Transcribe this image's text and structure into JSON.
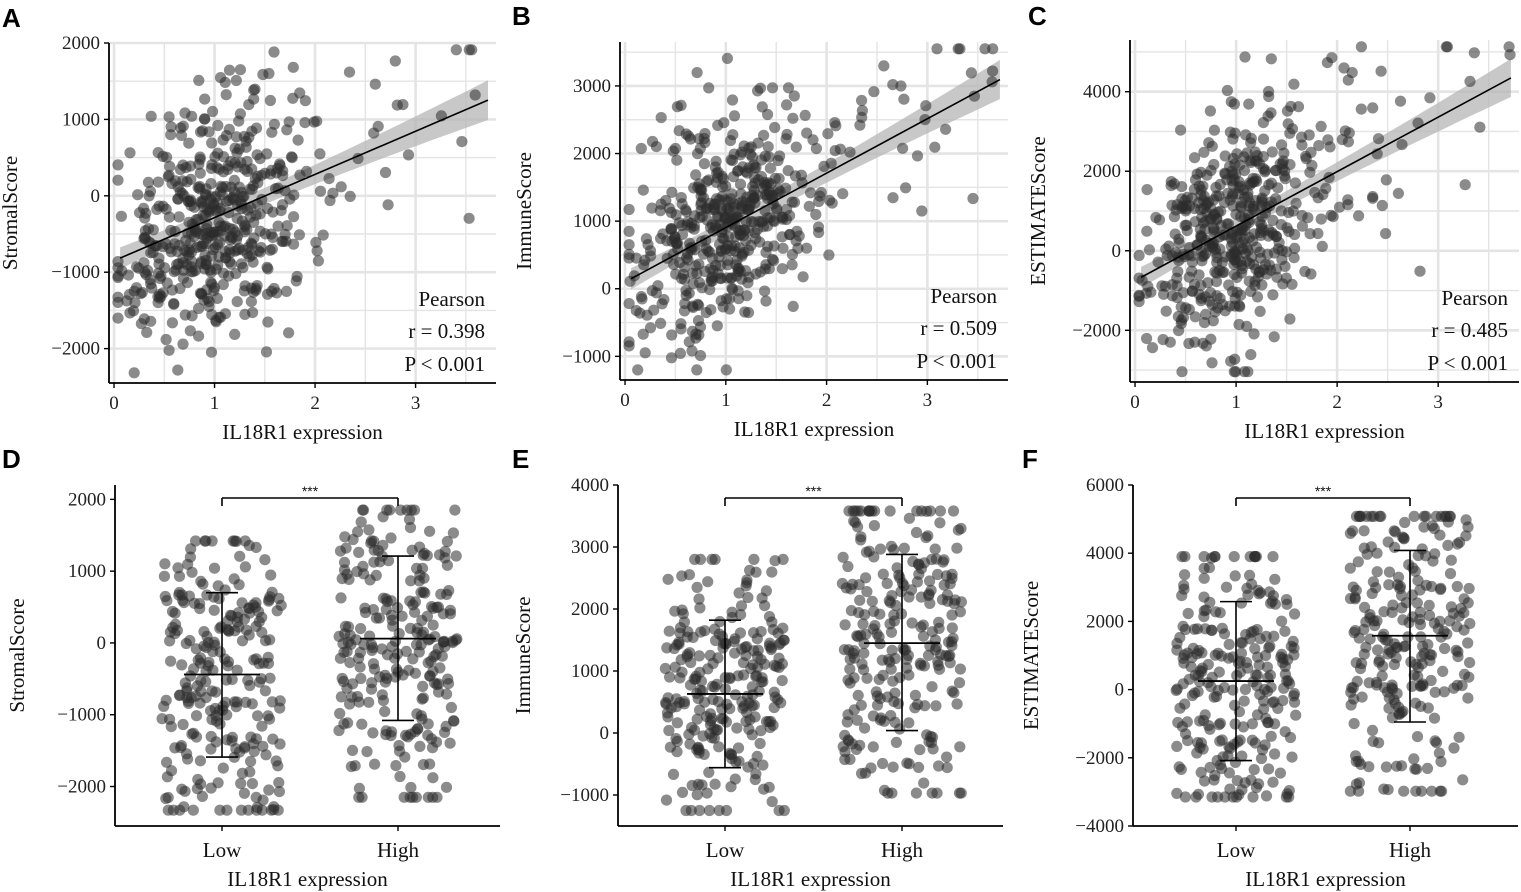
{
  "figure": {
    "x_axis_title": "IL18R1 expression",
    "stat_method": "Pearson"
  },
  "chart_data": [
    {
      "panel": "A",
      "type": "scatter",
      "ylabel": "StromalScore",
      "xlabel": "IL18R1 expression",
      "xlim": [
        -0.05,
        3.8
      ],
      "ylim": [
        -2450,
        2000
      ],
      "xticks": [
        0,
        1,
        2,
        3
      ],
      "yticks": [
        -2000,
        -1000,
        0,
        1000,
        2000
      ],
      "yticklabels": [
        "−2000",
        "−1000",
        "0",
        "1000",
        "2000"
      ],
      "grid": true,
      "fit": {
        "intercept": -850,
        "slope": 565,
        "band_low": 100,
        "band_high": 260
      },
      "stats": {
        "method": "Pearson",
        "r_text": "r = 0.398",
        "p_text": "P < 0.001"
      },
      "n_points": 500,
      "seed": 11,
      "x_mean": 1.0,
      "x_spread": 0.45,
      "resid_sd": 720
    },
    {
      "panel": "B",
      "type": "scatter",
      "ylabel": "ImmuneScore",
      "xlabel": "IL18R1 expression",
      "xlim": [
        -0.05,
        3.8
      ],
      "ylim": [
        -1350,
        3650
      ],
      "xticks": [
        0,
        1,
        2,
        3
      ],
      "yticks": [
        -1000,
        0,
        1000,
        2000,
        3000
      ],
      "yticklabels": [
        "−1000",
        "0",
        "1000",
        "2000",
        "3000"
      ],
      "grid": true,
      "fit": {
        "intercept": 100,
        "slope": 805,
        "band_low": 110,
        "band_high": 290
      },
      "stats": {
        "method": "Pearson",
        "r_text": "r = 0.509",
        "p_text": "P < 0.001"
      },
      "n_points": 500,
      "seed": 23,
      "x_mean": 1.0,
      "x_spread": 0.45,
      "resid_sd": 760
    },
    {
      "panel": "C",
      "type": "scatter",
      "ylabel": "ESTIMATEScore",
      "xlabel": "IL18R1 expression",
      "xlim": [
        -0.05,
        3.8
      ],
      "ylim": [
        -3300,
        5300
      ],
      "xticks": [
        0,
        1,
        2,
        3
      ],
      "yticks": [
        -2000,
        0,
        2000,
        4000
      ],
      "yticklabels": [
        "−2000",
        "0",
        "2000",
        "4000"
      ],
      "grid": true,
      "fit": {
        "intercept": -750,
        "slope": 1370,
        "band_low": 190,
        "band_high": 480
      },
      "stats": {
        "method": "Pearson",
        "r_text": "r = 0.485",
        "p_text": "P < 0.001"
      },
      "n_points": 500,
      "seed": 37,
      "x_mean": 1.0,
      "x_spread": 0.45,
      "resid_sd": 1350
    },
    {
      "panel": "D",
      "type": "jitter",
      "ylabel": "StromalScore",
      "xlabel": "IL18R1 expression",
      "categories": [
        "Low",
        "High"
      ],
      "ylim": [
        -2550,
        2200
      ],
      "yticks": [
        -2000,
        -1000,
        0,
        1000,
        2000
      ],
      "yticklabels": [
        "−2000",
        "−1000",
        "0",
        "1000",
        "2000"
      ],
      "groups": [
        {
          "name": "Low",
          "mean": -440,
          "sd_low": -1590,
          "sd_high": 700,
          "min": -2330,
          "max": 1420,
          "n": 250
        },
        {
          "name": "High",
          "mean": 60,
          "sd_low": -1080,
          "sd_high": 1210,
          "min": -2150,
          "max": 1850,
          "n": 250
        }
      ],
      "significance": "***",
      "seed": 101
    },
    {
      "panel": "E",
      "type": "jitter",
      "ylabel": "ImmuneScore",
      "xlabel": "IL18R1 expression",
      "categories": [
        "Low",
        "High"
      ],
      "ylim": [
        -1500,
        4000
      ],
      "yticks": [
        -1000,
        0,
        1000,
        2000,
        3000,
        4000
      ],
      "yticklabels": [
        "−1000",
        "0",
        "1000",
        "2000",
        "3000",
        "4000"
      ],
      "groups": [
        {
          "name": "Low",
          "mean": 630,
          "sd_low": -560,
          "sd_high": 1820,
          "min": -1250,
          "max": 2800,
          "n": 250
        },
        {
          "name": "High",
          "mean": 1450,
          "sd_low": 40,
          "sd_high": 2880,
          "min": -970,
          "max": 3580,
          "n": 250
        }
      ],
      "significance": "***",
      "seed": 202
    },
    {
      "panel": "F",
      "type": "jitter",
      "ylabel": "ESTIMATEScore",
      "xlabel": "IL18R1 expression",
      "categories": [
        "Low",
        "High"
      ],
      "ylim": [
        -4000,
        6000
      ],
      "yticks": [
        -4000,
        -2000,
        0,
        2000,
        4000,
        6000
      ],
      "yticklabels": [
        "−4000",
        "−2000",
        "0",
        "2000",
        "4000",
        "6000"
      ],
      "groups": [
        {
          "name": "Low",
          "mean": 250,
          "sd_low": -2080,
          "sd_high": 2580,
          "min": -3150,
          "max": 3900,
          "n": 250
        },
        {
          "name": "High",
          "mean": 1580,
          "sd_low": -950,
          "sd_high": 4080,
          "min": -2980,
          "max": 5080,
          "n": 250
        }
      ],
      "significance": "***",
      "seed": 303
    }
  ]
}
